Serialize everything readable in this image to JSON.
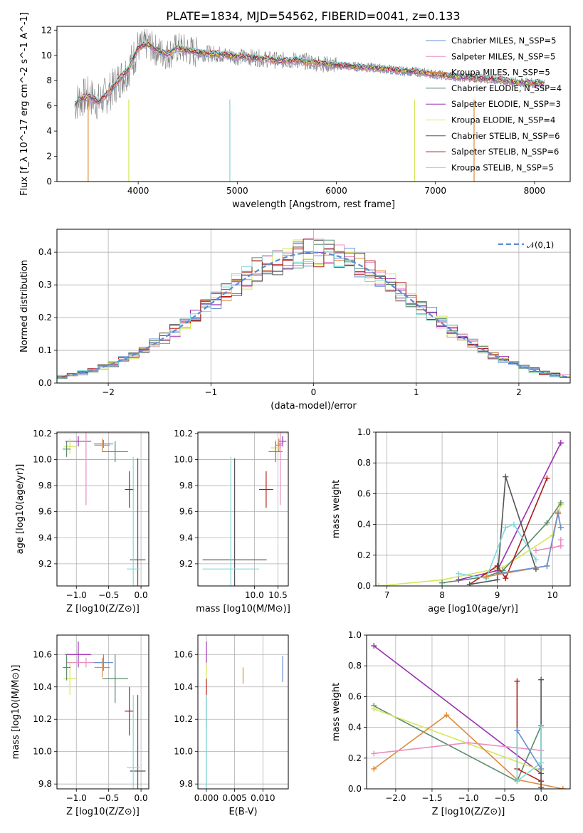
{
  "chart_data": [
    {
      "id": "spectrum",
      "type": "line",
      "title": "PLATE=1834, MJD=54562, FIBERID=0041, z=0.133",
      "xlabel": "wavelength [Angstrom, rest frame]",
      "ylabel": "Flux [f_λ 10^-17 erg cm^-2 s^-1 A^-1]",
      "xlim": [
        3180,
        8360
      ],
      "ylim": [
        0,
        12.3
      ],
      "xticks": [
        4000,
        5000,
        6000,
        7000,
        8000
      ],
      "yticks": [
        0,
        2,
        4,
        6,
        8,
        10,
        12
      ],
      "grid": false,
      "legend_position": "top-right",
      "legend": [
        {
          "label": "Chabrier MILES, N_SSP=5",
          "color": "#6a8fd6"
        },
        {
          "label": "Salpeter MILES, N_SSP=5",
          "color": "#e88fc0"
        },
        {
          "label": "Kroupa MILES, N_SSP=5",
          "color": "#e08a3c"
        },
        {
          "label": "Chabrier ELODIE, N_SSP=4",
          "color": "#5a8a6a"
        },
        {
          "label": "Salpeter ELODIE, N_SSP=3",
          "color": "#9a2fb0"
        },
        {
          "label": "Kroupa ELODIE, N_SSP=4",
          "color": "#d6e65a"
        },
        {
          "label": "Chabrier STELIB, N_SSP=6",
          "color": "#555555"
        },
        {
          "label": "Salpeter STELIB, N_SSP=6",
          "color": "#b01c1c"
        },
        {
          "label": "Kroupa STELIB, N_SSP=5",
          "color": "#7fdada"
        }
      ],
      "model_curve": {
        "x": [
          3360,
          3400,
          3500,
          3600,
          3700,
          3800,
          3900,
          4000,
          4100,
          4200,
          4300,
          4400,
          4500,
          4600,
          4800,
          5000,
          5200,
          5400,
          5600,
          5800,
          6000,
          6200,
          6400,
          6600,
          6800,
          7000,
          7200,
          7400,
          7600,
          7800,
          8000,
          8100
        ],
        "y": [
          6.1,
          6.5,
          6.8,
          6.3,
          7.0,
          8.0,
          8.9,
          10.6,
          10.9,
          10.3,
          10.1,
          10.6,
          10.4,
          10.2,
          10.1,
          9.9,
          9.8,
          9.6,
          9.6,
          9.4,
          9.2,
          9.1,
          9.0,
          8.8,
          8.7,
          8.5,
          8.3,
          8.2,
          8.1,
          7.9,
          7.8,
          7.8
        ]
      },
      "dips": [
        {
          "x": 3495,
          "color": "#e08a3c"
        },
        {
          "x": 3905,
          "color": "#d6e65a"
        },
        {
          "x": 4925,
          "color": "#7fdada"
        },
        {
          "x": 6790,
          "color": "#d6e65a"
        },
        {
          "x": 7390,
          "color": "#e08a3c"
        }
      ]
    },
    {
      "id": "residual-histogram",
      "type": "histogram",
      "xlabel": "(data-model)/error",
      "ylabel": "Normed distribution",
      "xlim": [
        -2.5,
        2.5
      ],
      "ylim": [
        0,
        0.47
      ],
      "xticks": [
        -2,
        -1,
        0,
        1,
        2
      ],
      "yticks": [
        0.0,
        0.1,
        0.2,
        0.3,
        0.4
      ],
      "grid": true,
      "legend": [
        {
          "label": "𝒩(0,1)",
          "style": "dashed",
          "color": "#5a8ad6"
        }
      ],
      "legend_position": "top-right",
      "bin_width": 0.1
    },
    {
      "id": "age-vs-Z",
      "type": "errorbar",
      "xlabel": "Z [log10(Z/Z⊙)]",
      "ylabel": "age [log10(age/yr)]",
      "xlim": [
        -1.3,
        0.12
      ],
      "ylim": [
        9.03,
        10.21
      ],
      "xticks": [
        -1.0,
        -0.5,
        0.0
      ],
      "yticks": [
        9.2,
        9.4,
        9.6,
        9.8,
        10.0,
        10.2
      ],
      "grid": true,
      "points": [
        {
          "color": "#9a2fb0",
          "x": -0.97,
          "xerr": 0.2,
          "y": 10.14,
          "yerr": 0.04
        },
        {
          "color": "#d6e65a",
          "x": -1.1,
          "xerr": 0.1,
          "y": 10.1,
          "yerr": 0.06
        },
        {
          "color": "#5a8a6a",
          "x": -1.15,
          "xerr": 0.06,
          "y": 10.08,
          "yerr": 0.06
        },
        {
          "color": "#e88fc0",
          "x": -0.85,
          "xerr": 0.3,
          "y": 10.0,
          "yerr": 0.35
        },
        {
          "color": "#6a8fd6",
          "x": -0.58,
          "xerr": 0.15,
          "y": 10.12,
          "yerr": 0.03
        },
        {
          "color": "#e08a3c",
          "x": -0.6,
          "xerr": 0.12,
          "y": 10.11,
          "yerr": 0.05
        },
        {
          "color": "#5a8a6a",
          "x": -0.4,
          "xerr": 0.2,
          "y": 10.06,
          "yerr": 0.08
        },
        {
          "color": "#b01c1c",
          "x": -0.18,
          "xerr": 0.07,
          "y": 9.77,
          "yerr": 0.14
        },
        {
          "color": "#555555",
          "x": -0.05,
          "xerr": 0.12,
          "y": 9.23,
          "yerr": 0.78
        },
        {
          "color": "#7fdada",
          "x": -0.12,
          "xerr": 0.1,
          "y": 9.16,
          "yerr": 0.86
        }
      ]
    },
    {
      "id": "age-vs-mass",
      "type": "errorbar",
      "xlabel": "mass [log10(M/M⊙)]",
      "xlim": [
        8.8,
        10.72
      ],
      "ylim": [
        9.03,
        10.21
      ],
      "xticks": [
        10.0,
        10.5
      ],
      "yticks": [
        9.2,
        9.4,
        9.6,
        9.8,
        10.0,
        10.2
      ],
      "grid": true,
      "points": [
        {
          "color": "#9a2fb0",
          "x": 10.6,
          "xerr": 0.08,
          "y": 10.14,
          "yerr": 0.04
        },
        {
          "color": "#6a8fd6",
          "x": 10.55,
          "xerr": 0.05,
          "y": 10.12,
          "yerr": 0.03
        },
        {
          "color": "#e08a3c",
          "x": 10.52,
          "xerr": 0.06,
          "y": 10.11,
          "yerr": 0.05
        },
        {
          "color": "#d6e65a",
          "x": 10.45,
          "xerr": 0.1,
          "y": 10.09,
          "yerr": 0.06
        },
        {
          "color": "#5a8a6a",
          "x": 10.45,
          "xerr": 0.15,
          "y": 10.06,
          "yerr": 0.08
        },
        {
          "color": "#e88fc0",
          "x": 10.55,
          "xerr": 0.03,
          "y": 10.0,
          "yerr": 0.35
        },
        {
          "color": "#b01c1c",
          "x": 10.25,
          "xerr": 0.15,
          "y": 9.77,
          "yerr": 0.14
        },
        {
          "color": "#555555",
          "x": 9.58,
          "xerr": 0.68,
          "y": 9.23,
          "yerr": 0.78
        },
        {
          "color": "#7fdada",
          "x": 9.5,
          "xerr": 0.6,
          "y": 9.16,
          "yerr": 0.86
        }
      ]
    },
    {
      "id": "mass-weight-vs-age",
      "type": "line",
      "xlabel": "age [log10(age/yr)]",
      "ylabel": "mass weight",
      "xlim": [
        6.8,
        10.32
      ],
      "ylim": [
        0,
        1.0
      ],
      "xticks": [
        7,
        8,
        9,
        10
      ],
      "yticks": [
        0.0,
        0.2,
        0.4,
        0.6,
        0.8,
        1.0
      ],
      "grid": true,
      "series": [
        {
          "color": "#d6e65a",
          "x": [
            6.85,
            8.0,
            9.1,
            10.0,
            10.15
          ],
          "y": [
            0.0,
            0.04,
            0.12,
            0.33,
            0.53
          ]
        },
        {
          "color": "#5a8a6a",
          "x": [
            8.0,
            8.8,
            9.1,
            9.9,
            10.15
          ],
          "y": [
            0.02,
            0.06,
            0.1,
            0.41,
            0.54
          ]
        },
        {
          "color": "#9a2fb0",
          "x": [
            8.3,
            9.0,
            10.15
          ],
          "y": [
            0.04,
            0.1,
            0.93
          ]
        },
        {
          "color": "#b01c1c",
          "x": [
            8.5,
            9.0,
            9.15,
            9.9
          ],
          "y": [
            0.01,
            0.13,
            0.05,
            0.7
          ]
        },
        {
          "color": "#555555",
          "x": [
            8.5,
            9.0,
            9.15,
            9.7
          ],
          "y": [
            0.01,
            0.04,
            0.71,
            0.11
          ]
        },
        {
          "color": "#7fdada",
          "x": [
            8.3,
            8.8,
            9.15,
            9.3,
            9.7
          ],
          "y": [
            0.08,
            0.05,
            0.38,
            0.4,
            0.17
          ]
        },
        {
          "color": "#e08a3c",
          "x": [
            8.8,
            9.9,
            10.1,
            10.15
          ],
          "y": [
            0.06,
            0.13,
            0.48,
            0.38
          ]
        },
        {
          "color": "#e88fc0",
          "x": [
            9.7,
            10.0,
            10.15,
            10.15
          ],
          "y": [
            0.23,
            0.25,
            0.26,
            0.3
          ]
        },
        {
          "color": "#6a8fd6",
          "x": [
            9.0,
            9.9,
            10.1,
            10.15
          ],
          "y": [
            0.08,
            0.13,
            0.47,
            0.38
          ]
        }
      ]
    },
    {
      "id": "mass-vs-Z",
      "type": "errorbar",
      "xlabel": "Z [log10(Z/Z⊙)]",
      "ylabel": "mass [log10(M/M⊙)]",
      "xlim": [
        -1.3,
        0.12
      ],
      "ylim": [
        9.77,
        10.72
      ],
      "xticks": [
        -1.0,
        -0.5,
        0.0
      ],
      "yticks": [
        9.8,
        10.0,
        10.2,
        10.4,
        10.6
      ],
      "grid": true,
      "points": [
        {
          "color": "#9a2fb0",
          "x": -0.97,
          "xerr": 0.2,
          "y": 10.6,
          "yerr": 0.08
        },
        {
          "color": "#e88fc0",
          "x": -0.85,
          "xerr": 0.3,
          "y": 10.55,
          "yerr": 0.03
        },
        {
          "color": "#d6e65a",
          "x": -1.1,
          "xerr": 0.1,
          "y": 10.45,
          "yerr": 0.1
        },
        {
          "color": "#5a8a6a",
          "x": -1.15,
          "xerr": 0.06,
          "y": 10.52,
          "yerr": 0.08
        },
        {
          "color": "#6a8fd6",
          "x": -0.58,
          "xerr": 0.15,
          "y": 10.55,
          "yerr": 0.05
        },
        {
          "color": "#e08a3c",
          "x": -0.6,
          "xerr": 0.12,
          "y": 10.52,
          "yerr": 0.06
        },
        {
          "color": "#5a8a6a",
          "x": -0.4,
          "xerr": 0.2,
          "y": 10.45,
          "yerr": 0.15
        },
        {
          "color": "#b01c1c",
          "x": -0.18,
          "xerr": 0.07,
          "y": 10.25,
          "yerr": 0.15
        },
        {
          "color": "#555555",
          "x": -0.05,
          "xerr": 0.12,
          "y": 9.88,
          "yerr": 0.47
        },
        {
          "color": "#7fdada",
          "x": -0.12,
          "xerr": 0.1,
          "y": 9.9,
          "yerr": 0.45
        }
      ]
    },
    {
      "id": "mass-vs-ebv",
      "type": "errorbar",
      "xlabel": "E(B-V)",
      "xlim": [
        -0.0015,
        0.0145
      ],
      "ylim": [
        9.77,
        10.72
      ],
      "xticks": [
        0.0,
        0.005,
        0.01
      ],
      "xtick_labels": [
        "0.000",
        "0.005",
        "0.010"
      ],
      "yticks": [
        9.8,
        10.0,
        10.2,
        10.4,
        10.6
      ],
      "grid": true,
      "points": [
        {
          "color": "#9a2fb0",
          "x": 0.0,
          "y": 10.6,
          "yerr": 0.08
        },
        {
          "color": "#d6e65a",
          "x": 0.0,
          "y": 10.45,
          "yerr": 0.1
        },
        {
          "color": "#b01c1c",
          "x": 0.0,
          "y": 10.3,
          "yerr": 0.15
        },
        {
          "color": "#555555",
          "x": 0.0,
          "y": 9.88,
          "yerr": 0.47
        },
        {
          "color": "#7fdada",
          "x": 0.0,
          "y": 9.9,
          "yerr": 0.45
        },
        {
          "color": "#e08a3c",
          "x": 0.0065,
          "y": 10.47,
          "yerr": 0.05
        },
        {
          "color": "#6a8fd6",
          "x": 0.0135,
          "y": 10.51,
          "yerr": 0.08
        }
      ]
    },
    {
      "id": "mass-weight-vs-Z",
      "type": "line",
      "xlabel": "Z [log10(Z/Z⊙)]",
      "ylabel": "mass weight",
      "xlim": [
        -2.4,
        0.4
      ],
      "ylim": [
        0,
        1.0
      ],
      "xticks": [
        -2.0,
        -1.5,
        -1.0,
        -0.5,
        0.0
      ],
      "xtick_labels": [
        "−2.0",
        "−1.5",
        "−1.0",
        "−0.5",
        "0.0"
      ],
      "yticks": [
        0.0,
        0.2,
        0.4,
        0.6,
        0.8,
        1.0
      ],
      "grid": true,
      "series": [
        {
          "color": "#9a2fb0",
          "x": [
            -2.3,
            0.0
          ],
          "y": [
            0.93,
            0.1
          ]
        },
        {
          "color": "#5a8a6a",
          "x": [
            -2.3,
            -0.33,
            0.0
          ],
          "y": [
            0.54,
            0.05,
            0.41
          ]
        },
        {
          "color": "#d6e65a",
          "x": [
            -2.3,
            0.0
          ],
          "y": [
            0.52,
            0.12
          ]
        },
        {
          "color": "#e08a3c",
          "x": [
            -2.3,
            -1.3,
            -0.33,
            0.3
          ],
          "y": [
            0.13,
            0.48,
            0.06,
            0.0
          ]
        },
        {
          "color": "#e88fc0",
          "x": [
            -2.3,
            -1.0,
            0.0
          ],
          "y": [
            0.23,
            0.3,
            0.25
          ]
        },
        {
          "color": "#b01c1c",
          "x": [
            -0.33,
            -0.33,
            0.0,
            0.0
          ],
          "y": [
            0.7,
            0.13,
            0.05,
            0.01
          ]
        },
        {
          "color": "#555555",
          "x": [
            0.0,
            0.0
          ],
          "y": [
            0.71,
            0.01
          ]
        },
        {
          "color": "#7fdada",
          "x": [
            -0.33,
            -0.33,
            0.0,
            0.0
          ],
          "y": [
            0.38,
            0.05,
            0.17,
            0.4
          ]
        },
        {
          "color": "#6a8fd6",
          "x": [
            -0.33,
            0.0
          ],
          "y": [
            0.38,
            0.13
          ]
        }
      ]
    }
  ]
}
